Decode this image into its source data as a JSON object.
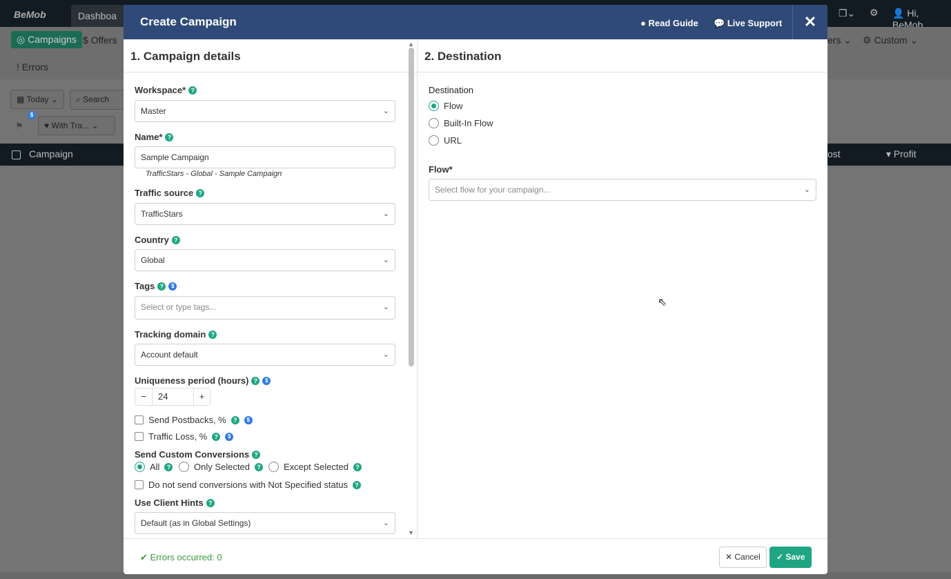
{
  "app": {
    "logo": "BeMob",
    "tab": "Dashboa",
    "user": "Hi, BeMob"
  },
  "nav": {
    "campaigns": "Campaigns",
    "offers": "Offers",
    "errors": "Errors",
    "others": "ers",
    "custom": "Custom"
  },
  "toolbar": {
    "date": "Today",
    "search_placeholder": "Search",
    "filter": "With Tra...",
    "badge": "$"
  },
  "table": {
    "col_campaign": "Campaign",
    "col_cost": "ost",
    "col_profit": "Profit"
  },
  "modal": {
    "title": "Create Campaign",
    "read_guide": "Read Guide",
    "live_support": "Live Support",
    "close": "✕",
    "details": {
      "heading": "1. Campaign details",
      "workspace_label": "Workspace*",
      "workspace_value": "Master",
      "name_label": "Name*",
      "name_value": "Sample Campaign",
      "name_hint": "TrafficStars - Global - Sample Campaign",
      "traffic_label": "Traffic source",
      "traffic_value": "TrafficStars",
      "country_label": "Country",
      "country_value": "Global",
      "tags_label": "Tags",
      "tags_placeholder": "Select or type tags...",
      "domain_label": "Tracking domain",
      "domain_value": "Account default",
      "uniq_label": "Uniqueness period (hours)",
      "uniq_value": "24",
      "postbacks_label": "Send Postbacks, %",
      "postbacks_checked": false,
      "loss_label": "Traffic Loss, %",
      "loss_checked": false,
      "custom_conv_label": "Send Custom Conversions",
      "custom_conv_options": [
        "All",
        "Only Selected",
        "Except Selected"
      ],
      "custom_conv_selected": "All",
      "not_specified_label": "Do not send conversions with Not Specified status",
      "not_specified_checked": false,
      "hints_label": "Use Client Hints",
      "hints_value": "Default (as in Global Settings)"
    },
    "destination": {
      "heading": "2. Destination",
      "label": "Destination",
      "options": [
        "Flow",
        "Built-In Flow",
        "URL"
      ],
      "selected": "Flow",
      "flow_label": "Flow*",
      "flow_placeholder": "Select flow for your campaign..."
    },
    "footer": {
      "errors": "Errors occurred: 0",
      "cancel": "Cancel",
      "save": "Save"
    }
  },
  "colors": {
    "header": "#2f4a78",
    "accent": "#1fa583",
    "info": "#2f7be0"
  }
}
